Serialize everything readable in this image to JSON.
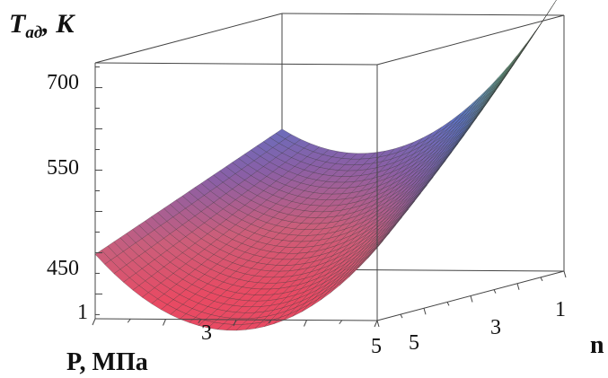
{
  "chart_data": {
    "type": "surface",
    "title": "",
    "zlabel": "T",
    "zlabel_subscript": "ад",
    "zlabel_unit": ", К",
    "xlabel": "P, МПа",
    "ylabel": "n",
    "x_range": [
      1,
      5
    ],
    "y_range": [
      1,
      5
    ],
    "z_range": [
      420,
      730
    ],
    "x_ticks": [
      "1",
      "3",
      "5"
    ],
    "y_ticks": [
      "1",
      "3",
      "5"
    ],
    "z_ticks": [
      "450",
      "550",
      "700"
    ],
    "surface_samples": [
      {
        "P": 1,
        "n": 5,
        "T": 498
      },
      {
        "P": 1,
        "n": 1,
        "T": 590
      },
      {
        "P": 3,
        "n": 5,
        "T": 455
      },
      {
        "P": 5,
        "n": 5,
        "T": 508
      },
      {
        "P": 5,
        "n": 1,
        "T": 723
      }
    ],
    "colormap": [
      "#e84a63",
      "#cc5e7a",
      "#8a5fa6",
      "#5d73c6",
      "#6ab08e",
      "#d4e7ad"
    ],
    "grid": true,
    "box": true
  }
}
